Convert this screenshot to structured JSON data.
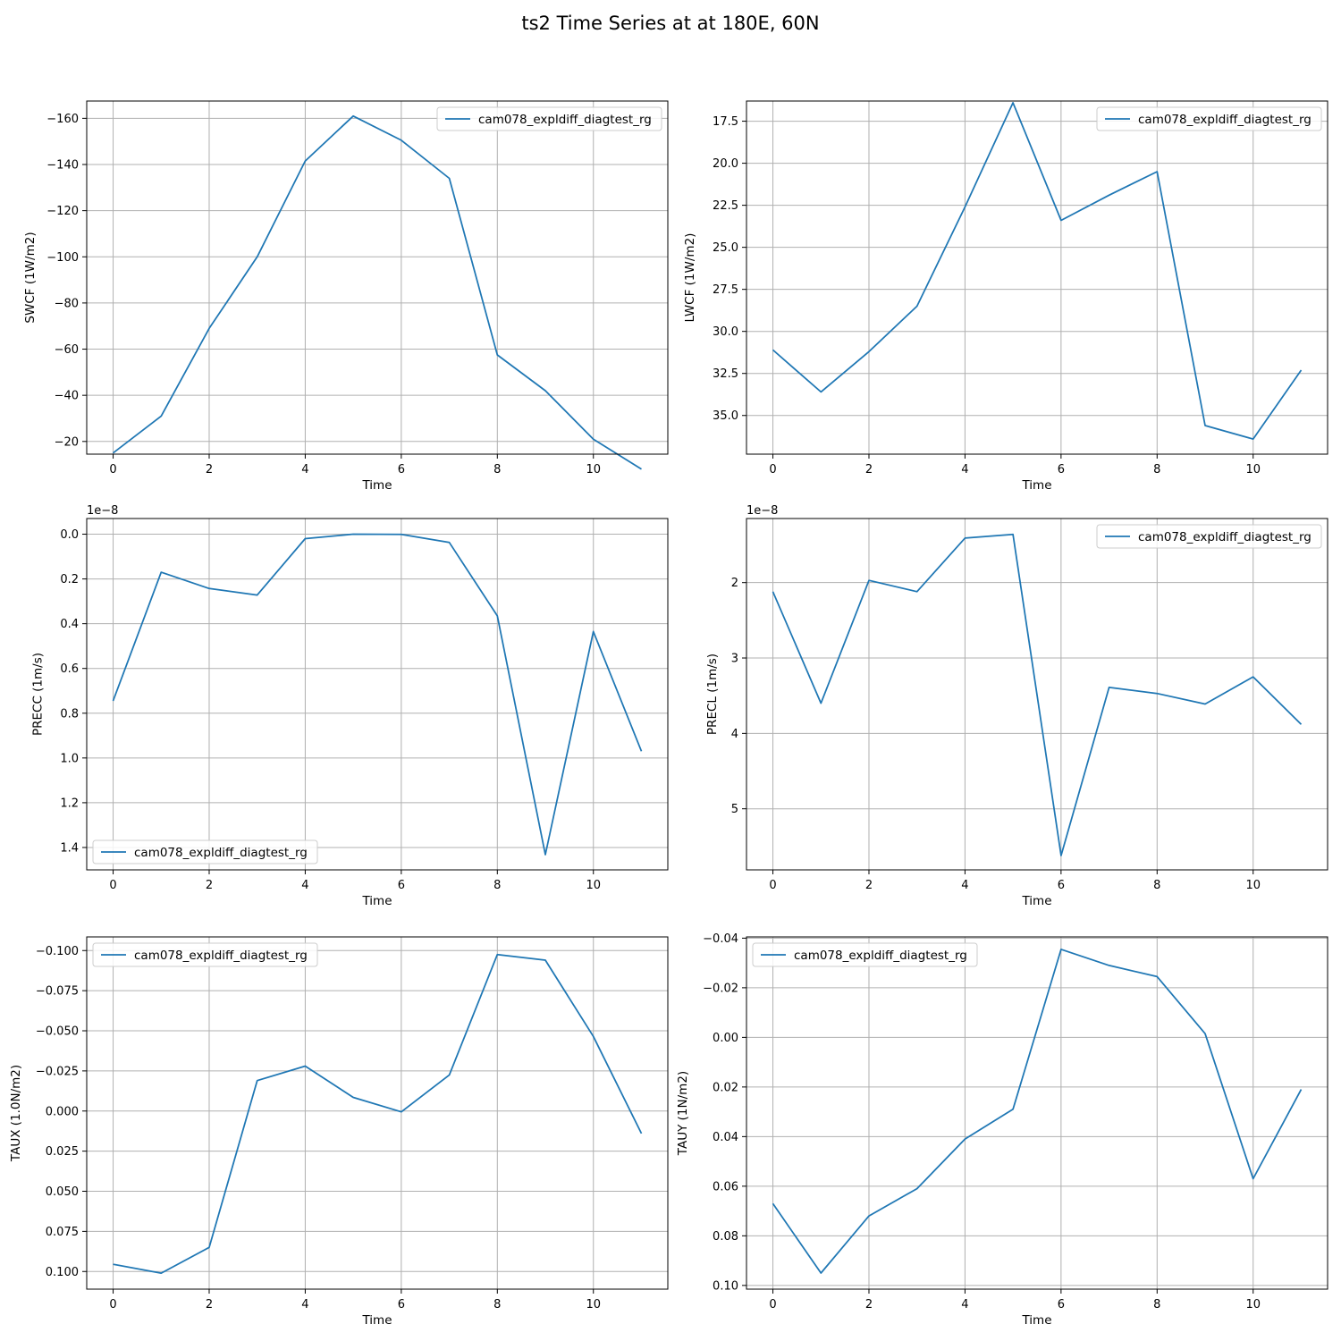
{
  "figure": {
    "title": "ts2 Time Series at at 180E, 60N",
    "line_color": "#1f77b4",
    "grid_color": "#b0b0b0"
  },
  "chart_data": [
    {
      "type": "line",
      "xlabel": "Time",
      "ylabel": "SWCF (1W/m2)",
      "y_inverted": true,
      "grid": true,
      "legend": "upper right",
      "offset_text": "",
      "xlim": [
        -0.55,
        11.55
      ],
      "ylim": [
        -14.5,
        -167.5
      ],
      "xticks": [
        0,
        2,
        4,
        6,
        8,
        10
      ],
      "xtick_labels": [
        "0",
        "2",
        "4",
        "6",
        "8",
        "10"
      ],
      "yticks": [
        -20,
        -40,
        -60,
        -80,
        -100,
        -120,
        -140,
        -160
      ],
      "ytick_labels": [
        "−20",
        "−40",
        "−60",
        "−80",
        "−100",
        "−120",
        "−140",
        "−160"
      ],
      "x": [
        0,
        1,
        2,
        3,
        4,
        5,
        6,
        7,
        8,
        9,
        10,
        11
      ],
      "series": [
        {
          "name": "cam078_expldiff_diagtest_rg",
          "values": [
            -15,
            -31,
            -69,
            -100,
            -141.5,
            -161,
            -150.5,
            -134,
            -57.5,
            -42,
            -21,
            -8
          ]
        }
      ]
    },
    {
      "type": "line",
      "xlabel": "Time",
      "ylabel": "LWCF (1W/m2)",
      "y_inverted": true,
      "grid": true,
      "legend": "upper right",
      "offset_text": "",
      "xlim": [
        -0.55,
        11.55
      ],
      "ylim": [
        37.3,
        16.3
      ],
      "xticks": [
        0,
        2,
        4,
        6,
        8,
        10
      ],
      "xtick_labels": [
        "0",
        "2",
        "4",
        "6",
        "8",
        "10"
      ],
      "yticks": [
        17.5,
        20.0,
        22.5,
        25.0,
        27.5,
        30.0,
        32.5,
        35.0
      ],
      "ytick_labels": [
        "17.5",
        "20.0",
        "22.5",
        "25.0",
        "27.5",
        "30.0",
        "32.5",
        "35.0"
      ],
      "x": [
        0,
        1,
        2,
        3,
        4,
        5,
        6,
        7,
        8,
        9,
        10,
        11
      ],
      "series": [
        {
          "name": "cam078_expldiff_diagtest_rg",
          "values": [
            31.1,
            33.6,
            31.2,
            28.5,
            22.6,
            16.4,
            23.4,
            21.9,
            20.5,
            35.6,
            36.4,
            32.3
          ]
        }
      ]
    },
    {
      "type": "line",
      "xlabel": "Time",
      "ylabel": "PRECC (1m/s)",
      "y_inverted": true,
      "grid": true,
      "legend": "lower left",
      "offset_text": "1e−8",
      "xlim": [
        -0.55,
        11.55
      ],
      "ylim": [
        1.5,
        -0.07
      ],
      "xticks": [
        0,
        2,
        4,
        6,
        8,
        10
      ],
      "xtick_labels": [
        "0",
        "2",
        "4",
        "6",
        "8",
        "10"
      ],
      "yticks": [
        0.0,
        0.2,
        0.4,
        0.6,
        0.8,
        1.0,
        1.2,
        1.4
      ],
      "ytick_labels": [
        "0.0",
        "0.2",
        "0.4",
        "0.6",
        "0.8",
        "1.0",
        "1.2",
        "1.4"
      ],
      "x": [
        0,
        1,
        2,
        3,
        4,
        5,
        6,
        7,
        8,
        9,
        10,
        11
      ],
      "series": [
        {
          "name": "cam078_expldiff_diagtest_rg",
          "values": [
            0.745,
            0.17,
            0.243,
            0.272,
            0.02,
            0.0,
            0.001,
            0.037,
            0.365,
            1.432,
            0.435,
            0.97
          ]
        }
      ]
    },
    {
      "type": "line",
      "xlabel": "Time",
      "ylabel": "PRECL (1m/s)",
      "y_inverted": true,
      "grid": true,
      "legend": "upper right",
      "offset_text": "1e−8",
      "xlim": [
        -0.55,
        11.55
      ],
      "ylim": [
        5.81,
        1.15
      ],
      "xticks": [
        0,
        2,
        4,
        6,
        8,
        10
      ],
      "xtick_labels": [
        "0",
        "2",
        "4",
        "6",
        "8",
        "10"
      ],
      "yticks": [
        2,
        3,
        4,
        5
      ],
      "ytick_labels": [
        "2",
        "3",
        "4",
        "5"
      ],
      "x": [
        0,
        1,
        2,
        3,
        4,
        5,
        6,
        7,
        8,
        9,
        10,
        11
      ],
      "series": [
        {
          "name": "cam078_expldiff_diagtest_rg",
          "values": [
            2.12,
            3.6,
            1.97,
            2.12,
            1.41,
            1.36,
            5.62,
            3.39,
            3.47,
            3.61,
            3.25,
            3.88
          ]
        }
      ]
    },
    {
      "type": "line",
      "xlabel": "Time",
      "ylabel": "TAUX (1.0N/m2)",
      "y_inverted": true,
      "grid": true,
      "legend": "upper left",
      "offset_text": "",
      "xlim": [
        -0.55,
        11.55
      ],
      "ylim": [
        0.111,
        -0.1085
      ],
      "xticks": [
        0,
        2,
        4,
        6,
        8,
        10
      ],
      "xtick_labels": [
        "0",
        "2",
        "4",
        "6",
        "8",
        "10"
      ],
      "yticks": [
        -0.1,
        -0.075,
        -0.05,
        -0.025,
        0.0,
        0.025,
        0.05,
        0.075,
        0.1
      ],
      "ytick_labels": [
        "−0.100",
        "−0.075",
        "−0.050",
        "−0.025",
        "0.000",
        "0.025",
        "0.050",
        "0.075",
        "0.100"
      ],
      "x": [
        0,
        1,
        2,
        3,
        4,
        5,
        6,
        7,
        8,
        9,
        10,
        11
      ],
      "series": [
        {
          "name": "cam078_expldiff_diagtest_rg",
          "values": [
            0.0955,
            0.101,
            0.085,
            -0.019,
            -0.028,
            -0.0085,
            0.0005,
            -0.0225,
            -0.0975,
            -0.094,
            -0.0465,
            0.014
          ]
        }
      ]
    },
    {
      "type": "line",
      "xlabel": "Time",
      "ylabel": "TAUY (1N/m2)",
      "y_inverted": true,
      "grid": true,
      "legend": "upper left",
      "offset_text": "",
      "xlim": [
        -0.55,
        11.55
      ],
      "ylim": [
        0.1015,
        -0.0405
      ],
      "xticks": [
        0,
        2,
        4,
        6,
        8,
        10
      ],
      "xtick_labels": [
        "0",
        "2",
        "4",
        "6",
        "8",
        "10"
      ],
      "yticks": [
        -0.04,
        -0.02,
        0.0,
        0.02,
        0.04,
        0.06,
        0.08,
        0.1
      ],
      "ytick_labels": [
        "−0.04",
        "−0.02",
        "0.00",
        "0.02",
        "0.04",
        "0.06",
        "0.08",
        "0.10"
      ],
      "x": [
        0,
        1,
        2,
        3,
        4,
        5,
        6,
        7,
        8,
        9,
        10,
        11
      ],
      "series": [
        {
          "name": "cam078_expldiff_diagtest_rg",
          "values": [
            0.067,
            0.095,
            0.072,
            0.061,
            0.041,
            0.029,
            -0.0355,
            -0.029,
            -0.0245,
            -0.0015,
            0.057,
            0.021
          ]
        }
      ]
    }
  ]
}
